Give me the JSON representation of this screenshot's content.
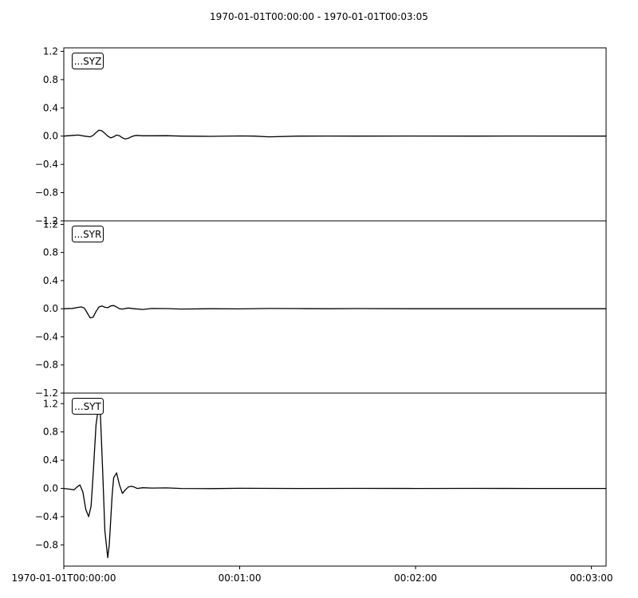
{
  "chart_data": {
    "type": "line",
    "title": "1970-01-01T00:00:00  -  1970-01-01T00:03:05",
    "xlabel": "",
    "ylabel": "",
    "x_unit": "seconds",
    "xlim": [
      0,
      185
    ],
    "x_ticks": [
      {
        "value": 0,
        "label": "1970-01-01T00:00:00"
      },
      {
        "value": 60,
        "label": "00:01:00"
      },
      {
        "value": 120,
        "label": "00:02:00"
      },
      {
        "value": 180,
        "label": "00:03:00"
      }
    ],
    "grid": false,
    "panels": [
      {
        "name": "...SYZ",
        "ylim": [
          -1.2,
          1.25
        ],
        "y_ticks": [
          {
            "value": 1.2,
            "label": "1.2"
          },
          {
            "value": 0.8,
            "label": "0.8"
          },
          {
            "value": 0.4,
            "label": "0.4"
          },
          {
            "value": 0.0,
            "label": "0.0"
          },
          {
            "value": -0.4,
            "label": "−0.4"
          },
          {
            "value": -0.8,
            "label": "−0.8"
          },
          {
            "value": -1.2,
            "label": "−1.2"
          }
        ],
        "x": [
          0,
          3,
          5,
          7,
          9,
          10,
          11,
          12,
          13,
          14,
          15,
          16,
          17,
          18,
          19,
          20,
          21,
          22,
          23,
          24,
          25,
          27,
          30,
          35,
          40,
          50,
          60,
          65,
          70,
          80,
          90,
          100,
          120,
          140,
          160,
          185
        ],
        "values": [
          0.0,
          0.01,
          0.015,
          0.0,
          -0.01,
          0.01,
          0.05,
          0.085,
          0.075,
          0.04,
          0.0,
          -0.025,
          -0.01,
          0.015,
          0.005,
          -0.025,
          -0.04,
          -0.03,
          -0.01,
          0.005,
          0.01,
          0.005,
          0.005,
          0.006,
          0.0,
          -0.003,
          0.002,
          0.0,
          -0.01,
          0.0,
          0.001,
          0.0,
          0.001,
          0.0,
          0.001,
          0.0
        ]
      },
      {
        "name": "...SYR",
        "ylim": [
          -1.2,
          1.25
        ],
        "y_ticks": [
          {
            "value": 1.2,
            "label": "1.2"
          },
          {
            "value": 0.8,
            "label": "0.8"
          },
          {
            "value": 0.4,
            "label": "0.4"
          },
          {
            "value": 0.0,
            "label": "0.0"
          },
          {
            "value": -0.4,
            "label": "−0.4"
          },
          {
            "value": -0.8,
            "label": "−0.8"
          },
          {
            "value": -1.2,
            "label": "−1.2"
          }
        ],
        "x": [
          0,
          3,
          5,
          6,
          7,
          8,
          9,
          10,
          11,
          12,
          13,
          14,
          15,
          16,
          17,
          18,
          19,
          20,
          22,
          24,
          27,
          30,
          35,
          40,
          50,
          60,
          70,
          80,
          90,
          100,
          120,
          140,
          160,
          185
        ],
        "values": [
          0.0,
          0.005,
          0.02,
          0.025,
          0.01,
          -0.06,
          -0.13,
          -0.12,
          -0.04,
          0.025,
          0.04,
          0.02,
          0.015,
          0.04,
          0.045,
          0.025,
          0.0,
          -0.005,
          0.01,
          0.0,
          -0.01,
          0.004,
          0.002,
          -0.005,
          0.0,
          -0.002,
          0.003,
          0.002,
          0.0,
          0.002,
          0.0,
          0.0,
          0.0,
          0.0
        ]
      },
      {
        "name": "...SYT",
        "ylim": [
          -1.1,
          1.35
        ],
        "y_ticks": [
          {
            "value": 1.2,
            "label": "1.2"
          },
          {
            "value": 0.8,
            "label": "0.8"
          },
          {
            "value": 0.4,
            "label": "0.4"
          },
          {
            "value": 0.0,
            "label": "0.0"
          },
          {
            "value": -0.4,
            "label": "−0.4"
          },
          {
            "value": -0.8,
            "label": "−0.8"
          }
        ],
        "x": [
          0,
          2,
          3.5,
          4.5,
          5.5,
          6.5,
          7.5,
          8.5,
          9.3,
          10,
          11,
          12,
          12.5,
          13.3,
          14,
          15,
          15.5,
          16.5,
          17,
          18,
          19,
          20,
          21,
          22,
          23,
          24,
          25,
          27,
          30,
          35,
          40,
          50,
          60,
          80,
          100,
          120,
          140,
          160,
          185
        ],
        "values": [
          0.0,
          -0.01,
          -0.02,
          0.02,
          0.05,
          -0.05,
          -0.3,
          -0.4,
          -0.25,
          0.2,
          0.9,
          1.2,
          1.05,
          0.2,
          -0.6,
          -0.98,
          -0.8,
          -0.1,
          0.15,
          0.22,
          0.05,
          -0.07,
          -0.02,
          0.02,
          0.03,
          0.02,
          0.0,
          0.01,
          0.005,
          0.008,
          0.0,
          -0.003,
          0.002,
          0.0,
          0.001,
          0.0,
          0.001,
          0.0,
          0.0
        ]
      }
    ]
  }
}
